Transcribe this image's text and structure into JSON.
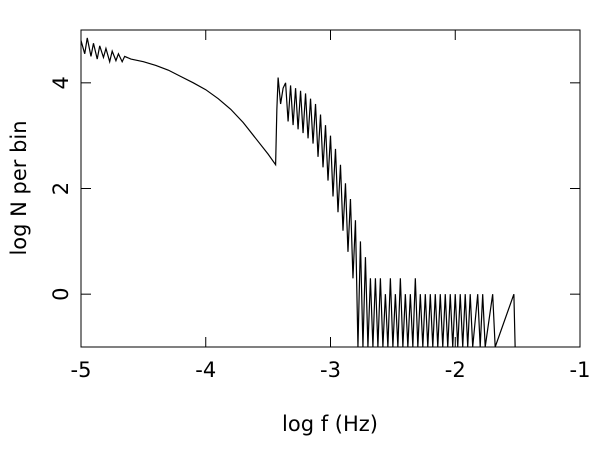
{
  "chart_data": {
    "type": "line",
    "xlabel": "log f (Hz)",
    "ylabel": "log N per bin",
    "xlim": [
      -5,
      -1
    ],
    "xticks": [
      -5,
      -4,
      -3,
      -2,
      -1
    ],
    "ylim": [
      -1,
      5
    ],
    "yticks": [
      0,
      2,
      4
    ],
    "color": "#000000",
    "x": [
      -5,
      -4.97,
      -4.95,
      -4.92,
      -4.9,
      -4.87,
      -4.85,
      -4.82,
      -4.8,
      -4.77,
      -4.75,
      -4.72,
      -4.7,
      -4.67,
      -4.65,
      -4.6,
      -4.5,
      -4.4,
      -4.3,
      -4.2,
      -4.1,
      -4.0,
      -3.9,
      -3.8,
      -3.7,
      -3.6,
      -3.5,
      -3.44,
      -3.43,
      -3.42,
      -3.4,
      -3.38,
      -3.36,
      -3.34,
      -3.32,
      -3.3,
      -3.28,
      -3.26,
      -3.24,
      -3.22,
      -3.2,
      -3.18,
      -3.16,
      -3.14,
      -3.12,
      -3.1,
      -3.08,
      -3.06,
      -3.04,
      -3.02,
      -3.0,
      -2.98,
      -2.96,
      -2.94,
      -2.92,
      -2.9,
      -2.88,
      -2.86,
      -2.84,
      -2.82,
      -2.8,
      -2.78,
      -2.76,
      -2.74,
      -2.72,
      -2.7,
      -2.68,
      -2.66,
      -2.64,
      -2.62,
      -2.6,
      -2.58,
      -2.56,
      -2.54,
      -2.52,
      -2.5,
      -2.48,
      -2.46,
      -2.44,
      -2.42,
      -2.4,
      -2.38,
      -2.36,
      -2.34,
      -2.32,
      -2.3,
      -2.28,
      -2.26,
      -2.24,
      -2.22,
      -2.2,
      -2.18,
      -2.16,
      -2.14,
      -2.12,
      -2.1,
      -2.08,
      -2.06,
      -2.04,
      -2.02,
      -2.0,
      -1.98,
      -1.96,
      -1.94,
      -1.92,
      -1.9,
      -1.88,
      -1.86,
      -1.82,
      -1.8,
      -1.78,
      -1.76,
      -1.7,
      -1.68,
      -1.53,
      -1.52
    ],
    "values": [
      4.8,
      4.55,
      4.85,
      4.5,
      4.75,
      4.45,
      4.7,
      4.48,
      4.65,
      4.4,
      4.6,
      4.42,
      4.55,
      4.4,
      4.5,
      4.45,
      4.4,
      4.33,
      4.24,
      4.12,
      4.0,
      3.87,
      3.7,
      3.5,
      3.25,
      2.95,
      2.65,
      2.45,
      3.5,
      4.1,
      3.6,
      3.9,
      4.0,
      3.27,
      3.95,
      3.2,
      3.9,
      3.12,
      3.85,
      3.05,
      3.8,
      2.95,
      3.7,
      2.85,
      3.6,
      2.6,
      3.4,
      2.4,
      3.2,
      2.15,
      3.0,
      1.85,
      2.75,
      1.55,
      2.45,
      1.2,
      2.1,
      0.8,
      1.8,
      0.3,
      1.4,
      -1,
      1.0,
      -1,
      0.7,
      -1,
      0.3,
      -1,
      0.3,
      -1,
      0.3,
      -1,
      0,
      -1,
      0.3,
      -1,
      0,
      -1,
      0.3,
      -1,
      0,
      -1,
      0,
      -1,
      0.3,
      -1,
      0,
      -1,
      0,
      -1,
      0,
      -1,
      0,
      -1,
      0,
      -1,
      0,
      -1,
      0,
      -1,
      0,
      -1,
      0,
      -1,
      0,
      -1,
      0,
      -1,
      0,
      -1,
      0,
      -1,
      0,
      -1,
      0,
      -1
    ]
  }
}
